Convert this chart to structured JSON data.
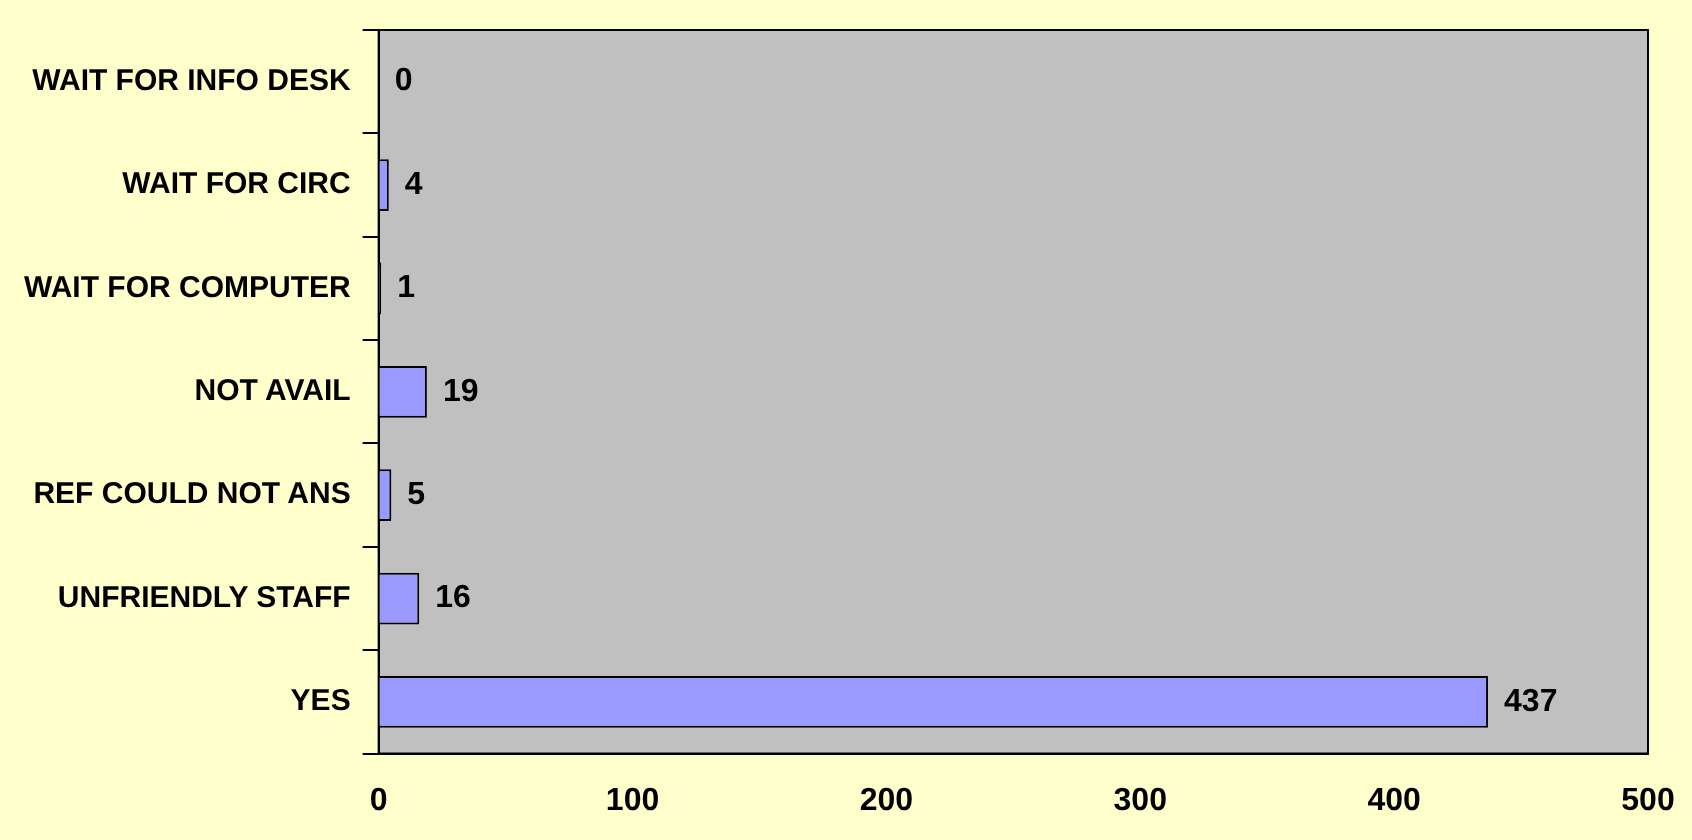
{
  "chart_data": {
    "type": "bar",
    "orientation": "horizontal",
    "categories": [
      "WAIT FOR INFO DESK",
      "WAIT FOR CIRC",
      "WAIT FOR COMPUTER",
      "NOT AVAIL",
      "REF COULD NOT ANS",
      "UNFRIENDLY STAFF",
      "YES"
    ],
    "values": [
      0,
      4,
      1,
      19,
      5,
      16,
      437
    ],
    "color": "#9999ff",
    "xlim": [
      0,
      500
    ],
    "xticks": [
      0,
      100,
      200,
      300,
      400,
      500
    ],
    "data_labels": true,
    "grid": false,
    "legend": false
  }
}
